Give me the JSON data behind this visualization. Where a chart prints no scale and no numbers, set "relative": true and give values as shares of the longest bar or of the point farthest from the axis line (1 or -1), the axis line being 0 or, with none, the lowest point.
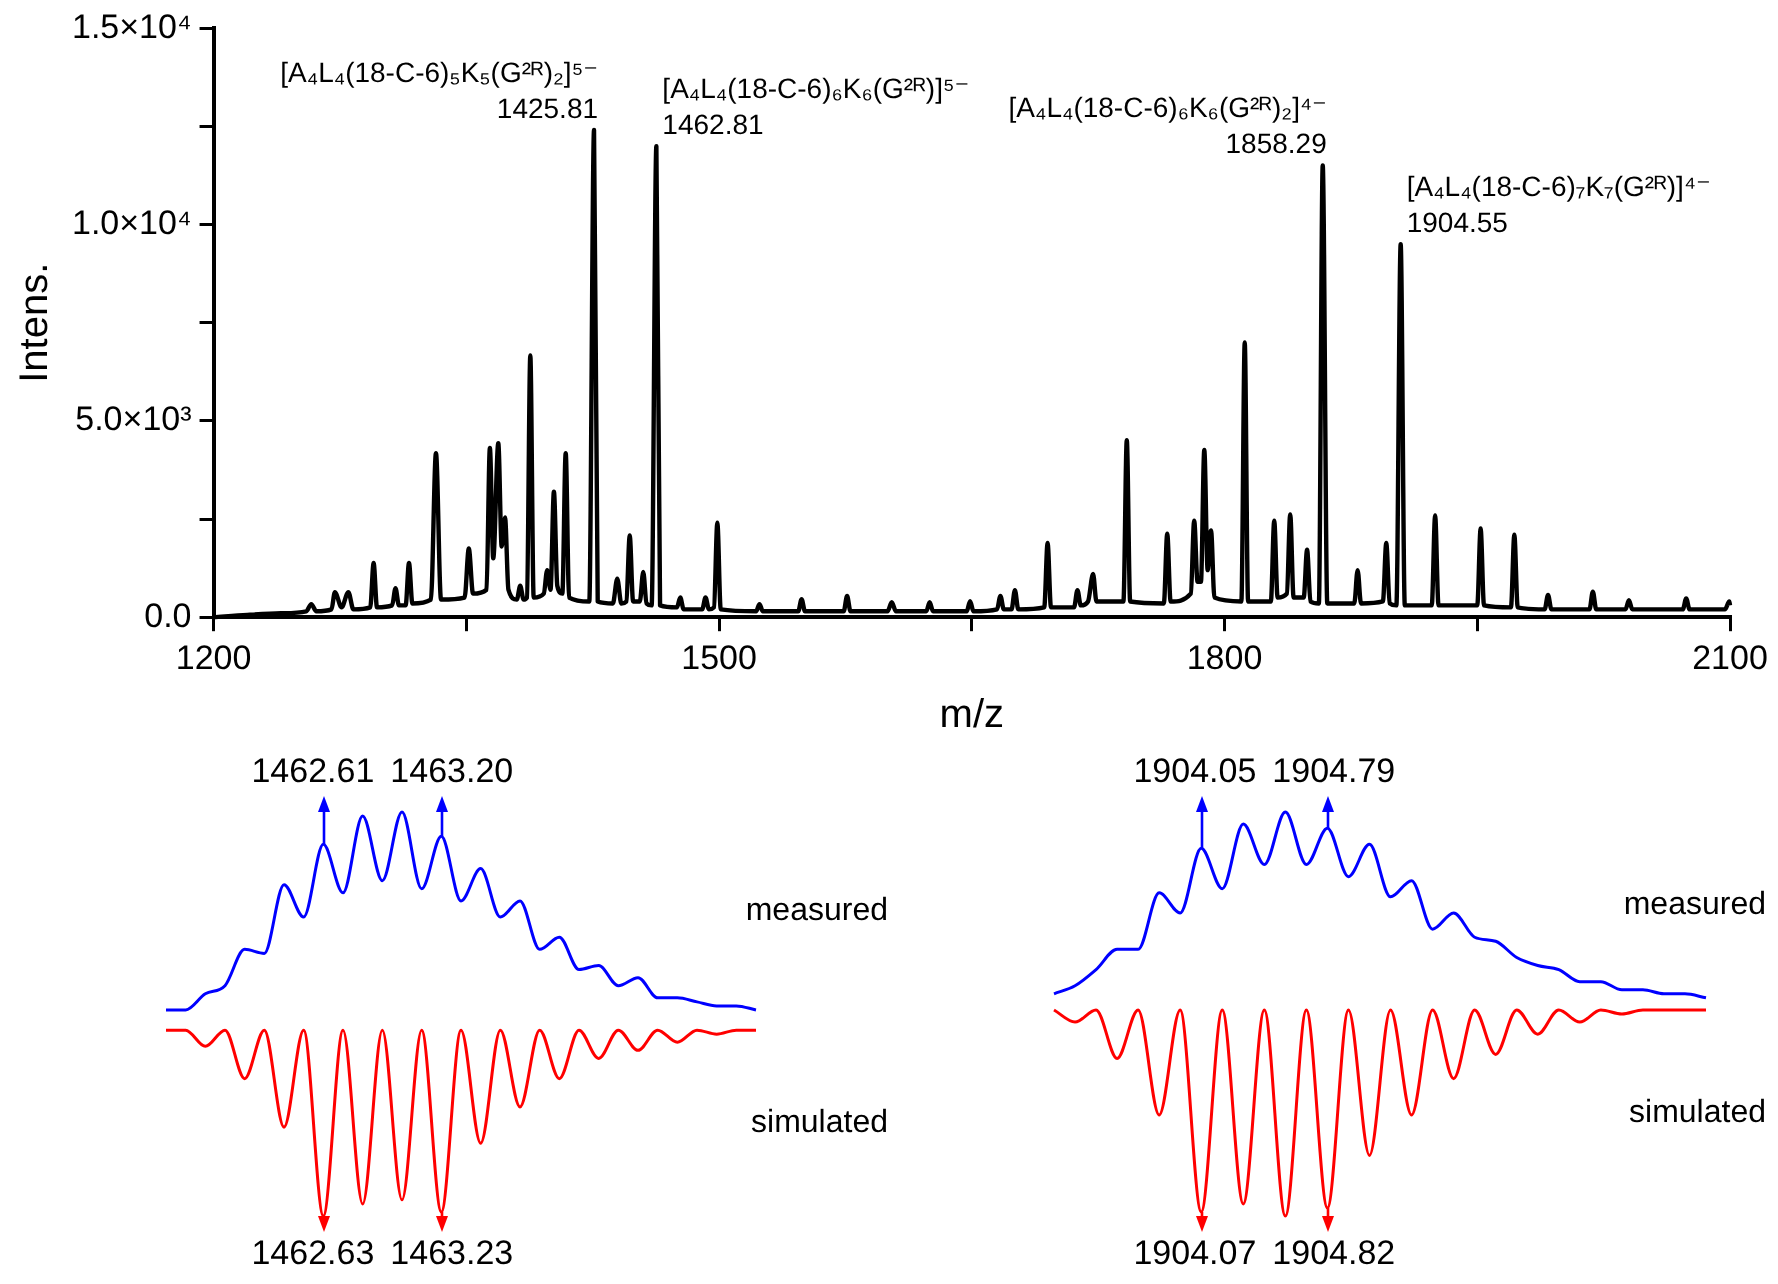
{
  "chart_data": [
    {
      "type": "line",
      "xlabel": "m/z",
      "ylabel": "Intens.",
      "marker": "none",
      "xlim": [
        1200,
        2100
      ],
      "xticks": [
        1200,
        {
          "value": 1350,
          "label": null
        },
        1500,
        {
          "value": 1650,
          "label": null
        },
        1800,
        {
          "value": 1950,
          "label": null
        },
        2100
      ],
      "ylim": [
        0,
        15000
      ],
      "yticks": [
        {
          "value": 0,
          "label": "0.0"
        },
        {
          "value": 2500,
          "label": null
        },
        {
          "value": 5000,
          "label": "5.0×10³"
        },
        {
          "value": 7500,
          "label": null
        },
        {
          "value": 10000,
          "label": "1.0×10⁴"
        },
        {
          "value": 12500,
          "label": null
        },
        {
          "value": 15000,
          "label": "1.5×10⁴"
        }
      ],
      "x": [
        1200,
        1220,
        1240,
        1255,
        1258,
        1261,
        1270,
        1272,
        1276,
        1280,
        1283,
        1293,
        1295,
        1297,
        1306,
        1308,
        1310,
        1314,
        1316,
        1318,
        1329,
        1332,
        1335,
        1349,
        1351.5,
        1354,
        1362,
        1364,
        1366,
        1369,
        1371,
        1373,
        1375,
        1380,
        1382,
        1384,
        1386,
        1388,
        1390,
        1396,
        1398,
        1400,
        1402,
        1404,
        1407,
        1409,
        1411,
        1423,
        1425.81,
        1428,
        1437,
        1439.6,
        1442,
        1445,
        1447,
        1449,
        1453,
        1455,
        1457,
        1460,
        1462.81,
        1465,
        1475,
        1477,
        1479,
        1490,
        1492,
        1494,
        1497,
        1499,
        1501,
        1522,
        1524,
        1526,
        1547,
        1549,
        1551,
        1574,
        1576,
        1578,
        1600,
        1602.5,
        1605,
        1623,
        1625,
        1627,
        1647,
        1649,
        1651,
        1665,
        1667,
        1669,
        1673.6,
        1675.6,
        1677.6,
        1693,
        1695,
        1697,
        1710.7,
        1712.7,
        1714.7,
        1719,
        1722,
        1724,
        1740,
        1742,
        1744,
        1764,
        1766,
        1768,
        1780,
        1782,
        1784,
        1786,
        1788,
        1790,
        1792,
        1794,
        1810,
        1812,
        1814,
        1827.5,
        1829.5,
        1831.5,
        1837,
        1839,
        1841,
        1847,
        1849,
        1851,
        1856,
        1858.29,
        1861,
        1877,
        1879,
        1881,
        1894,
        1896,
        1898,
        1902,
        1904.55,
        1907,
        1923,
        1925,
        1927,
        1950,
        1952,
        1954,
        1970,
        1972,
        1974,
        1990,
        1992,
        1994,
        2016.6,
        2018.6,
        2020.6,
        2038,
        2040,
        2042,
        2072,
        2074,
        2076,
        2097,
        2099.6,
        2100
      ],
      "series": [
        {
          "color": "#000000",
          "values": [
            0,
            60,
            100,
            150,
            330,
            150,
            200,
            640,
            250,
            640,
            200,
            250,
            1380,
            250,
            300,
            740,
            300,
            300,
            1380,
            350,
            450,
            4180,
            450,
            500,
            1750,
            600,
            700,
            4310,
            1500,
            4430,
            1800,
            2540,
            700,
            450,
            800,
            450,
            500,
            6670,
            500,
            600,
            1200,
            700,
            3200,
            800,
            600,
            4180,
            500,
            400,
            12410,
            400,
            350,
            980,
            350,
            400,
            2080,
            400,
            400,
            1150,
            350,
            300,
            12000,
            300,
            250,
            500,
            200,
            200,
            500,
            200,
            250,
            2410,
            200,
            150,
            330,
            150,
            150,
            460,
            150,
            150,
            540,
            150,
            150,
            380,
            150,
            150,
            380,
            150,
            150,
            410,
            150,
            200,
            540,
            200,
            200,
            690,
            200,
            250,
            1890,
            250,
            250,
            690,
            300,
            400,
            1100,
            400,
            400,
            4510,
            400,
            350,
            2130,
            400,
            600,
            2460,
            900,
            900,
            4260,
            1200,
            2210,
            500,
            400,
            7000,
            400,
            400,
            2460,
            500,
            600,
            2620,
            500,
            500,
            1720,
            400,
            350,
            11510,
            350,
            350,
            1200,
            350,
            400,
            1890,
            350,
            300,
            9500,
            300,
            300,
            2590,
            300,
            300,
            2260,
            300,
            250,
            2100,
            250,
            200,
            570,
            200,
            200,
            650,
            200,
            200,
            430,
            200,
            200,
            480,
            200,
            200,
            400,
            300
          ]
        }
      ],
      "annotations": [
        {
          "text": "[A₄L₄(18-C-6)₅K₅(G²ᴿ)₂]⁵⁻",
          "x": 1425.81,
          "y": 12410
        },
        {
          "text": "1425.81",
          "x": 1425.81,
          "y": 12410
        },
        {
          "text": "[A₄L₄(18-C-6)₆K₆(G²ᴿ)]⁵⁻",
          "x": 1462.81,
          "y": 12000
        },
        {
          "text": "1462.81",
          "x": 1462.81,
          "y": 12000
        },
        {
          "text": "[A₄L₄(18-C-6)₆K₆(G²ᴿ)₂]⁴⁻",
          "x": 1858.29,
          "y": 11510
        },
        {
          "text": "1858.29",
          "x": 1858.29,
          "y": 11510
        },
        {
          "text": "[A₄L₄(18-C-6)₇K₇(G²ᴿ)]⁴⁻",
          "x": 1904.55,
          "y": 9500
        },
        {
          "text": "1904.55",
          "x": 1904.55,
          "y": 9500
        }
      ]
    },
    {
      "type": "line",
      "relative": true,
      "marker": "none",
      "categories": [
        null,
        null,
        null,
        null,
        null,
        null,
        null,
        null,
        null,
        null,
        null,
        null,
        null,
        null,
        null,
        null,
        null,
        null,
        null,
        null,
        null,
        null,
        null,
        null,
        null,
        null,
        null,
        null,
        null,
        null,
        null
      ],
      "series": [
        {
          "name": "measured",
          "color": "#0000ff",
          "values": [
            0.51,
            0.51,
            0.55,
            0.57,
            0.66,
            0.65,
            0.82,
            0.74,
            0.92,
            0.8,
            0.99,
            0.83,
            1.0,
            0.81,
            0.94,
            0.78,
            0.86,
            0.74,
            0.78,
            0.66,
            0.69,
            0.61,
            0.62,
            0.57,
            0.59,
            0.54,
            0.54,
            0.53,
            0.52,
            0.52,
            0.51
          ]
        },
        {
          "name": "simulated",
          "color": "#ff0000",
          "values": [
            0.46,
            0.46,
            0.42,
            0.46,
            0.34,
            0.46,
            0.22,
            0.46,
            0,
            0.46,
            0.03,
            0.46,
            0.04,
            0.46,
            0.01,
            0.46,
            0.18,
            0.46,
            0.27,
            0.46,
            0.34,
            0.46,
            0.39,
            0.46,
            0.41,
            0.46,
            0.43,
            0.46,
            0.45,
            0.46,
            0.46
          ]
        }
      ],
      "annotations": [
        {
          "text": "1462.61",
          "y": 0.92
        },
        {
          "text": "1463.20",
          "y": 0.94
        },
        {
          "text": "1462.63",
          "y": 0
        },
        {
          "text": "1463.23",
          "y": 0.01
        }
      ]
    },
    {
      "type": "line",
      "relative": true,
      "marker": "none",
      "categories": [
        null,
        null,
        null,
        null,
        null,
        null,
        null,
        null,
        null,
        null,
        null,
        null,
        null,
        null,
        null,
        null,
        null,
        null,
        null,
        null,
        null,
        null,
        null,
        null,
        null,
        null,
        null,
        null,
        null,
        null,
        null,
        null
      ],
      "series": [
        {
          "name": "measured",
          "color": "#0000ff",
          "values": [
            0.55,
            0.57,
            0.61,
            0.66,
            0.66,
            0.8,
            0.75,
            0.91,
            0.81,
            0.97,
            0.87,
            1.0,
            0.87,
            0.96,
            0.84,
            0.92,
            0.79,
            0.83,
            0.71,
            0.75,
            0.69,
            0.68,
            0.64,
            0.62,
            0.61,
            0.58,
            0.58,
            0.56,
            0.56,
            0.55,
            0.55,
            0.54
          ]
        },
        {
          "name": "simulated",
          "color": "#ff0000",
          "values": [
            0.51,
            0.48,
            0.51,
            0.39,
            0.51,
            0.25,
            0.51,
            0.01,
            0.51,
            0.03,
            0.51,
            0,
            0.51,
            0.02,
            0.51,
            0.15,
            0.51,
            0.25,
            0.51,
            0.34,
            0.51,
            0.4,
            0.51,
            0.45,
            0.51,
            0.48,
            0.51,
            0.5,
            0.51,
            0.51,
            0.51,
            0.51
          ]
        }
      ],
      "annotations": [
        {
          "text": "1904.05",
          "y": 0.91
        },
        {
          "text": "1904.79",
          "y": 0.96
        },
        {
          "text": "1904.07",
          "y": 0.01
        },
        {
          "text": "1904.82",
          "y": 0.02
        }
      ]
    }
  ]
}
